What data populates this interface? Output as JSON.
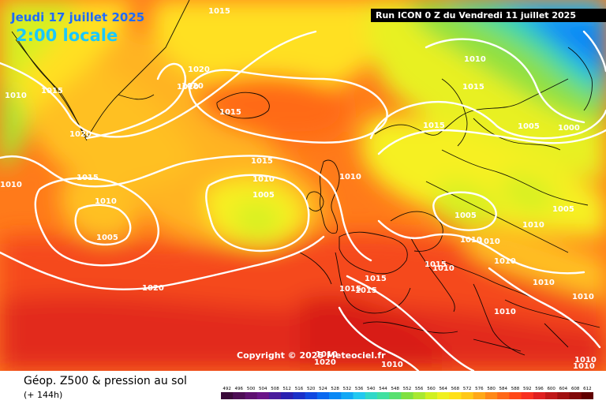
{
  "header": {
    "date_label": "Jeudi 17 juillet 2025",
    "time_label": "2:00 locale",
    "run_label": "Run ICON 0 Z du Vendredi 11 juillet 2025"
  },
  "map": {
    "copyright": "Copyright © 2025 Meteociel.fr",
    "isobar_labels": [
      "1015",
      "1010",
      "1015",
      "1020",
      "1020",
      "1020",
      "1010",
      "1020",
      "1015",
      "1010",
      "1010",
      "1005",
      "1015",
      "1005",
      "1010",
      "1015",
      "1010",
      "1005",
      "1020",
      "1015",
      "1015",
      "1015",
      "1005",
      "1000",
      "1010",
      "1005",
      "1010",
      "1010",
      "1010",
      "1010",
      "1015",
      "1010",
      "1010",
      "1015",
      "1015",
      "1010",
      "1010",
      "1020",
      "1010",
      "1010",
      "1010"
    ]
  },
  "footer": {
    "product_title": "Géop. Z500 & pression au sol",
    "lead_time": "(+ 144h)"
  },
  "legend": {
    "values": [
      "492",
      "496",
      "500",
      "504",
      "508",
      "512",
      "516",
      "520",
      "524",
      "528",
      "532",
      "536",
      "540",
      "544",
      "548",
      "552",
      "556",
      "560",
      "564",
      "568",
      "572",
      "576",
      "580",
      "584",
      "588",
      "592",
      "596",
      "600",
      "604",
      "608",
      "612"
    ],
    "colors": [
      "#3a0a3a",
      "#4d0d55",
      "#5e1070",
      "#6a1488",
      "#4a1c9c",
      "#2a20b0",
      "#1a30c8",
      "#1048e0",
      "#0a68f0",
      "#0a88f5",
      "#12a8f5",
      "#22c8f0",
      "#30d8c8",
      "#40e0a0",
      "#58e070",
      "#80e040",
      "#a8e830",
      "#d0f020",
      "#f0f020",
      "#ffe018",
      "#ffc818",
      "#ffa818",
      "#ff8818",
      "#ff6818",
      "#ff4818",
      "#f83020",
      "#e02020",
      "#c01818",
      "#a01010",
      "#800808",
      "#600000"
    ]
  },
  "colors": {
    "date_label": "#1e6bff",
    "time_label": "#19c8ff",
    "isobar": "#ffffff",
    "coastline": "#000000"
  }
}
